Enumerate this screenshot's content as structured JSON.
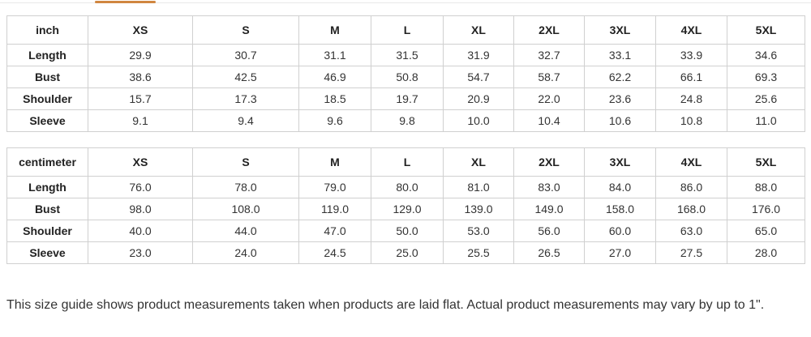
{
  "colors": {
    "accent_orange": "#d0863f",
    "table_border": "#d0d0d0",
    "divider": "#e9e9e9"
  },
  "tab_strip": {
    "active_tab_underline": "orange-underline-indicator"
  },
  "tables": [
    {
      "unit_label": "inch",
      "sizes": [
        "XS",
        "S",
        "M",
        "L",
        "XL",
        "2XL",
        "3XL",
        "4XL",
        "5XL"
      ],
      "rows": [
        {
          "label": "Length",
          "values": [
            "29.9",
            "30.7",
            "31.1",
            "31.5",
            "31.9",
            "32.7",
            "33.1",
            "33.9",
            "34.6"
          ]
        },
        {
          "label": "Bust",
          "values": [
            "38.6",
            "42.5",
            "46.9",
            "50.8",
            "54.7",
            "58.7",
            "62.2",
            "66.1",
            "69.3"
          ]
        },
        {
          "label": "Shoulder",
          "values": [
            "15.7",
            "17.3",
            "18.5",
            "19.7",
            "20.9",
            "22.0",
            "23.6",
            "24.8",
            "25.6"
          ]
        },
        {
          "label": "Sleeve",
          "values": [
            "9.1",
            "9.4",
            "9.6",
            "9.8",
            "10.0",
            "10.4",
            "10.6",
            "10.8",
            "11.0"
          ]
        }
      ]
    },
    {
      "unit_label": "centimeter",
      "sizes": [
        "XS",
        "S",
        "M",
        "L",
        "XL",
        "2XL",
        "3XL",
        "4XL",
        "5XL"
      ],
      "rows": [
        {
          "label": "Length",
          "values": [
            "76.0",
            "78.0",
            "79.0",
            "80.0",
            "81.0",
            "83.0",
            "84.0",
            "86.0",
            "88.0"
          ]
        },
        {
          "label": "Bust",
          "values": [
            "98.0",
            "108.0",
            "119.0",
            "129.0",
            "139.0",
            "149.0",
            "158.0",
            "168.0",
            "176.0"
          ]
        },
        {
          "label": "Shoulder",
          "values": [
            "40.0",
            "44.0",
            "47.0",
            "50.0",
            "53.0",
            "56.0",
            "60.0",
            "63.0",
            "65.0"
          ]
        },
        {
          "label": "Sleeve",
          "values": [
            "23.0",
            "24.0",
            "24.5",
            "25.0",
            "25.5",
            "26.5",
            "27.0",
            "27.5",
            "28.0"
          ]
        }
      ]
    }
  ],
  "footer": {
    "note": "This size guide shows product measurements taken when products are laid flat. Actual product measurements may vary by up to 1\"."
  }
}
